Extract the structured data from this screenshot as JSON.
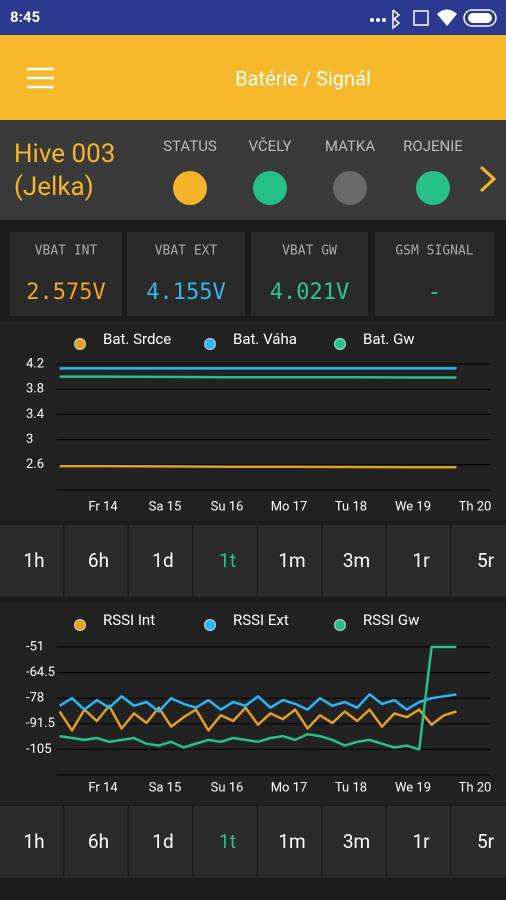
{
  "status_bar": {
    "time": "8:45"
  },
  "toolbar": {
    "title": "Batérie / Signál"
  },
  "hive": {
    "name": "Hive 003",
    "alias": "(Jelka)",
    "indicators": [
      {
        "label": "STATUS",
        "color": "#f6b42a"
      },
      {
        "label": "VČELY",
        "color": "#26c08a"
      },
      {
        "label": "MATKA",
        "color": "#6a6a6a"
      },
      {
        "label": "ROJENIE",
        "color": "#26c08a"
      }
    ]
  },
  "tiles": [
    {
      "label": "VBAT INT",
      "value": "2.575V",
      "color": "#f0a526"
    },
    {
      "label": "VBAT EXT",
      "value": "4.155V",
      "color": "#34b5f0"
    },
    {
      "label": "VBAT GW",
      "value": "4.021V",
      "color": "#2ec495"
    },
    {
      "label": "GSM SIGNAL",
      "value": "-",
      "color": "#2ec495"
    }
  ],
  "panels": [
    {
      "chart": {
        "type": "line",
        "x": [
          13.3,
          14,
          15,
          16,
          17,
          18,
          19,
          19.7
        ],
        "xlim": [
          13.25,
          20.25
        ],
        "xticks": [
          {
            "value": 14,
            "label": "Fr 14"
          },
          {
            "value": 15,
            "label": "Sa 15"
          },
          {
            "value": 16,
            "label": "Su 16"
          },
          {
            "value": 17,
            "label": "Mo 17"
          },
          {
            "value": 18,
            "label": "Tu 18"
          },
          {
            "value": 19,
            "label": "We 19"
          },
          {
            "value": 20,
            "label": "Th 20"
          }
        ],
        "ylim": [
          2.2,
          4.2
        ],
        "yticks": [
          2.6,
          3,
          3.4,
          3.8,
          4.2
        ],
        "grid": true,
        "series": [
          {
            "name": "Bat. Srdce",
            "color": "#e0a020",
            "values": [
              2.58,
              2.58,
              2.575,
              2.57,
              2.57,
              2.565,
              2.56,
              2.56
            ]
          },
          {
            "name": "Bat. Váha",
            "color": "#29b6f6",
            "values": [
              4.13,
              4.13,
              4.13,
              4.13,
              4.13,
              4.13,
              4.13,
              4.13
            ]
          },
          {
            "name": "Bat. Gw",
            "color": "#26c08a",
            "values": [
              4.0,
              4.0,
              3.995,
              3.99,
              3.99,
              3.99,
              3.985,
              3.985
            ]
          }
        ]
      },
      "ranges": [
        "1h",
        "6h",
        "1d",
        "1t",
        "1m",
        "3m",
        "1r",
        "5r"
      ],
      "selected": "1t"
    },
    {
      "chart": {
        "type": "line",
        "x": [
          13.3,
          13.5,
          13.7,
          13.9,
          14.1,
          14.3,
          14.5,
          14.7,
          14.9,
          15.1,
          15.3,
          15.5,
          15.7,
          15.9,
          16.1,
          16.3,
          16.5,
          16.7,
          16.9,
          17.1,
          17.3,
          17.5,
          17.7,
          17.9,
          18.1,
          18.3,
          18.5,
          18.7,
          18.9,
          19.1,
          19.3,
          19.5,
          19.7
        ],
        "xlim": [
          13.25,
          20.25
        ],
        "xticks": [
          {
            "value": 14,
            "label": "Fr 14"
          },
          {
            "value": 15,
            "label": "Sa 15"
          },
          {
            "value": 16,
            "label": "Su 16"
          },
          {
            "value": 17,
            "label": "Mo 17"
          },
          {
            "value": 18,
            "label": "Tu 18"
          },
          {
            "value": 19,
            "label": "We 19"
          },
          {
            "value": 20,
            "label": "Th 20"
          }
        ],
        "ylim": [
          -118.5,
          -51
        ],
        "yticks": [
          -105,
          -91.5,
          -78,
          -64.5,
          -51
        ],
        "grid": true,
        "series": [
          {
            "name": "RSSI Int",
            "color": "#e0a020",
            "values": [
              -85,
              -95,
              -84,
              -90,
              -82,
              -94,
              -86,
              -91,
              -83,
              -93,
              -88,
              -84,
              -95,
              -87,
              -90,
              -83,
              -92,
              -86,
              -89,
              -84,
              -94,
              -87,
              -91,
              -85,
              -90,
              -84,
              -93,
              -86,
              -88,
              -84,
              -92,
              -87,
              -85
            ]
          },
          {
            "name": "RSSI Ext",
            "color": "#29b6f6",
            "values": [
              -82,
              -78,
              -84,
              -79,
              -83,
              -77,
              -82,
              -80,
              -85,
              -78,
              -81,
              -83,
              -79,
              -84,
              -80,
              -82,
              -77,
              -83,
              -79,
              -81,
              -84,
              -78,
              -82,
              -80,
              -83,
              -76,
              -81,
              -79,
              -84,
              -80,
              -78,
              -77,
              -76
            ]
          },
          {
            "name": "RSSI Gw",
            "color": "#26c08a",
            "values": [
              -98,
              -99,
              -100,
              -99,
              -101,
              -100,
              -99,
              -102,
              -103,
              -101,
              -104,
              -102,
              -100,
              -101,
              -99,
              -100,
              -101,
              -99,
              -98,
              -100,
              -97,
              -98,
              -100,
              -103,
              -101,
              -100,
              -102,
              -104,
              -103,
              -105,
              -51,
              -51,
              -51
            ]
          }
        ]
      },
      "ranges": [
        "1h",
        "6h",
        "1d",
        "1t",
        "1m",
        "3m",
        "1r",
        "5r"
      ],
      "selected": "1t"
    }
  ]
}
